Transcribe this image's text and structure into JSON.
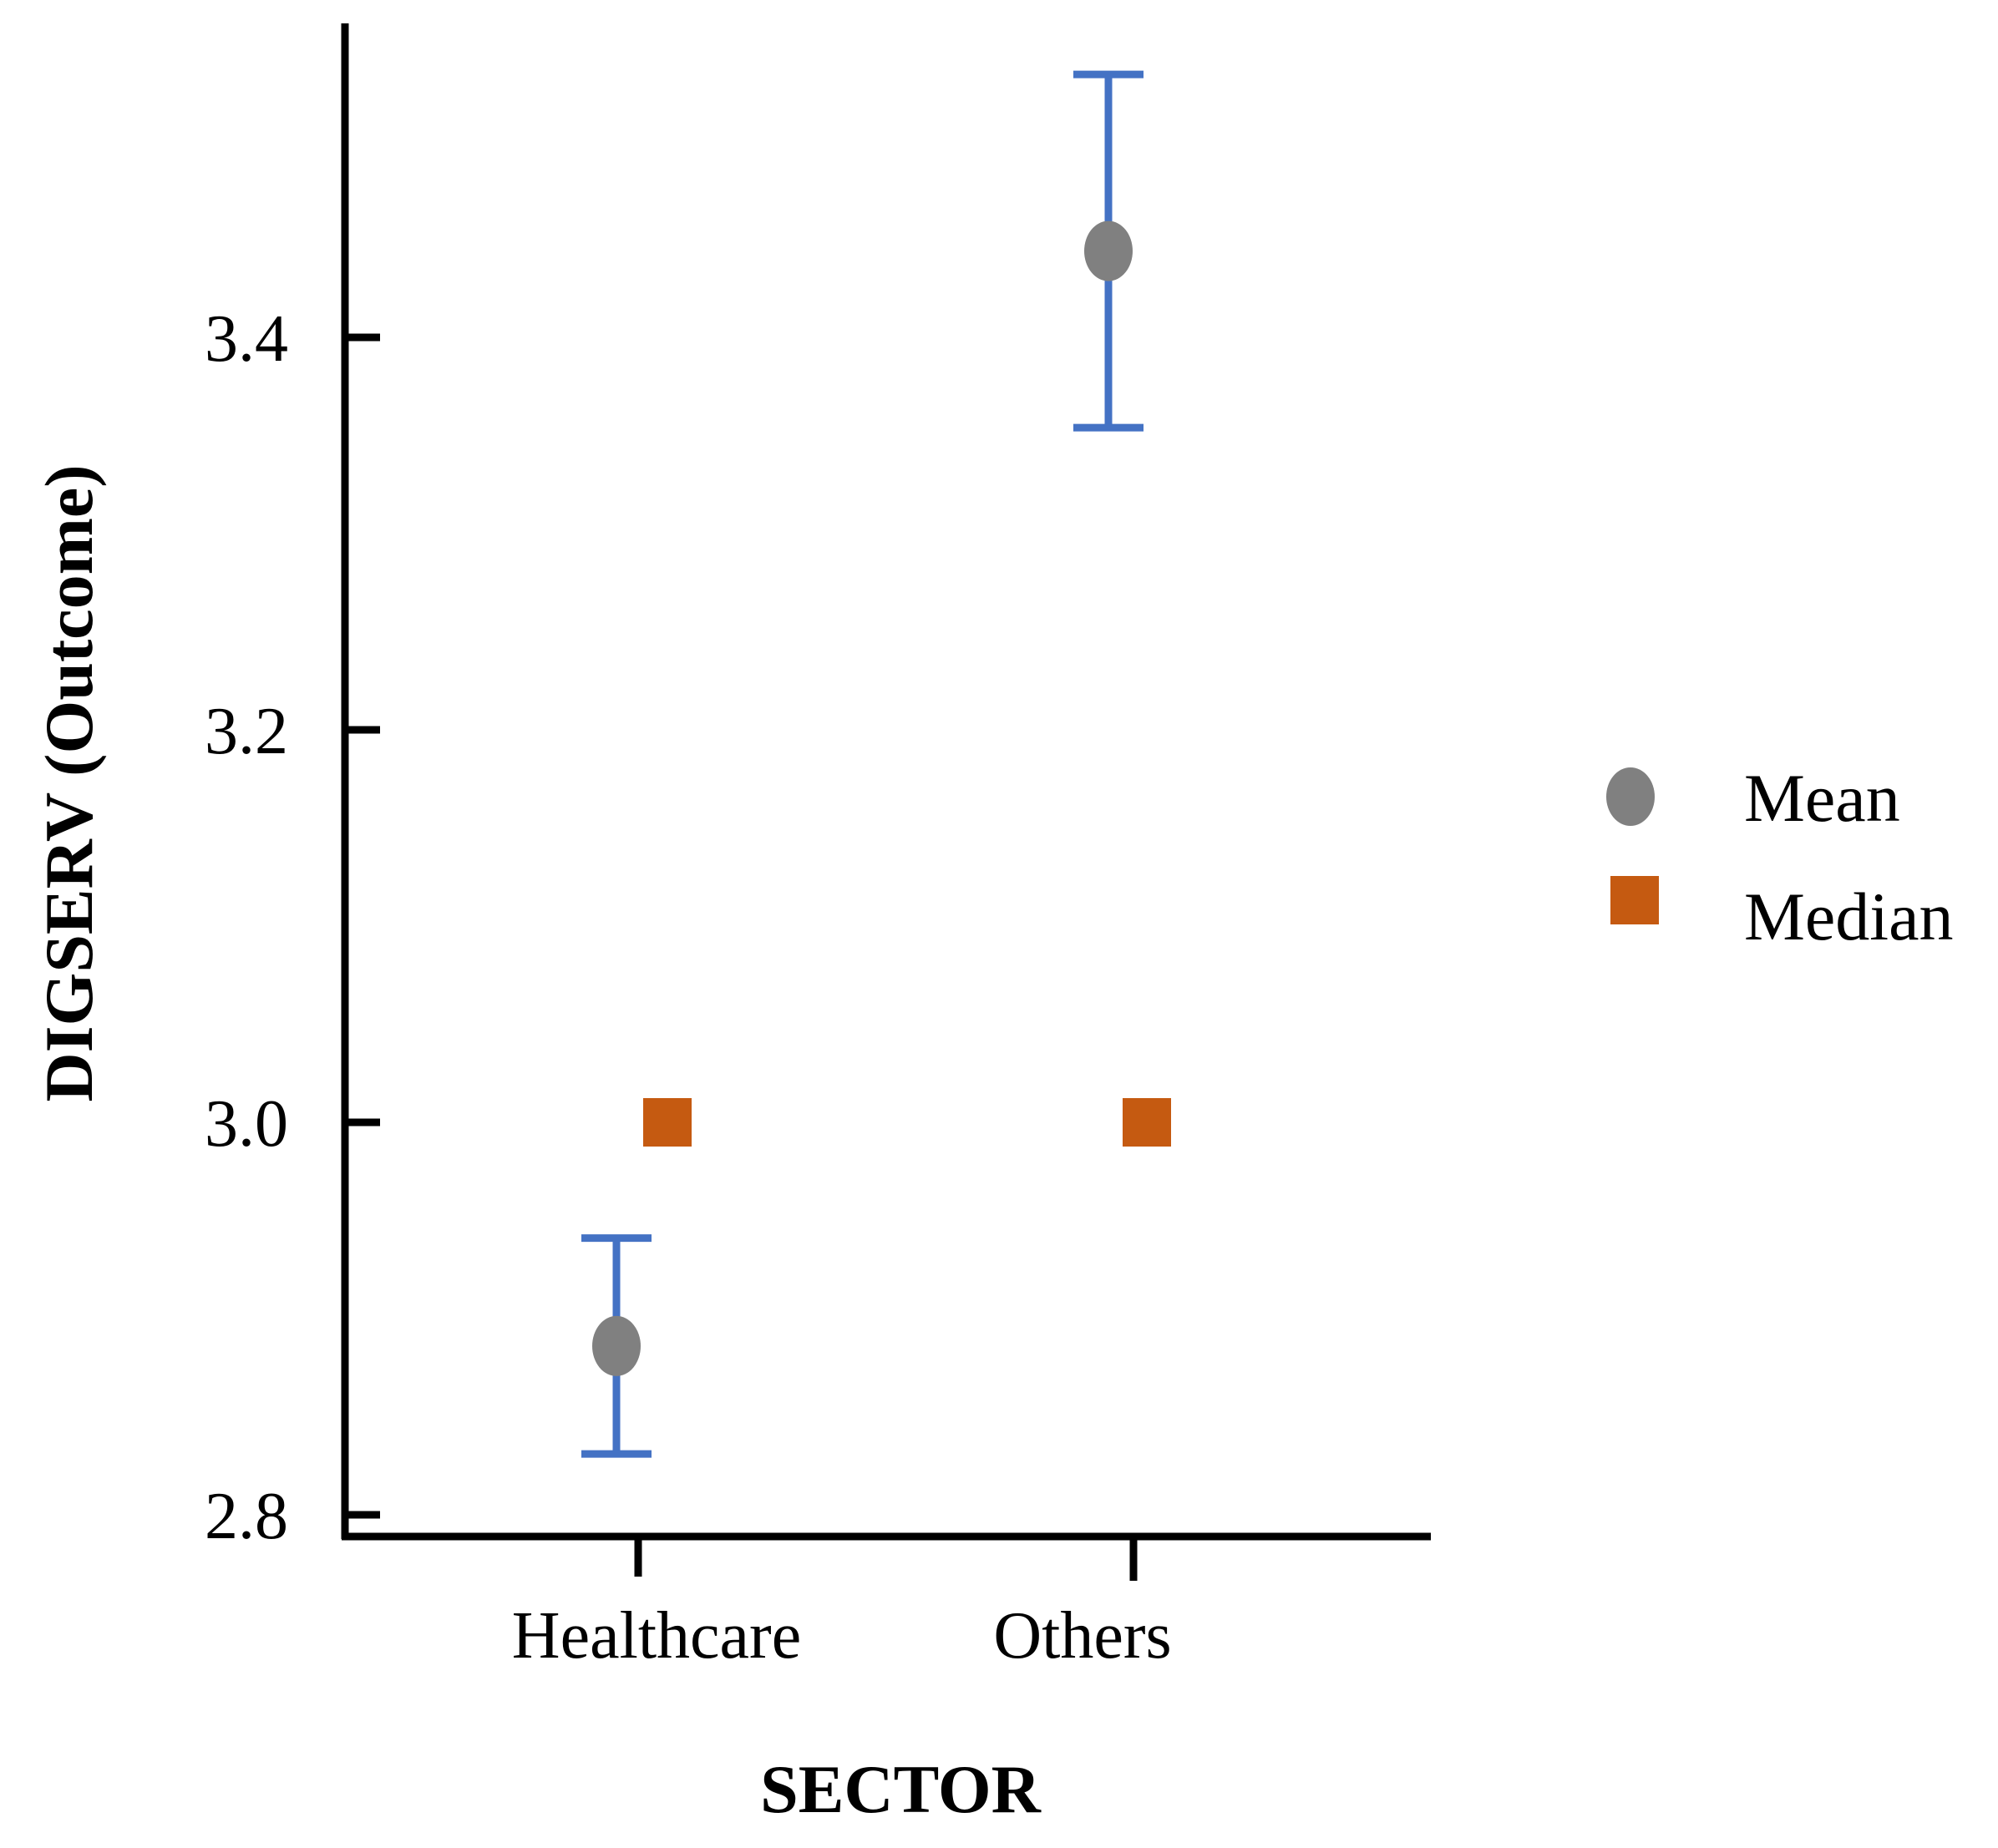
{
  "chart_data": {
    "type": "scatter",
    "title": "",
    "xlabel": "SECTOR",
    "ylabel": "DIGSERV (Outcome)",
    "categories": [
      "Healthcare",
      "Others"
    ],
    "ylim": [
      2.79,
      3.56
    ],
    "yticks": [
      2.8,
      3.0,
      3.2,
      3.4
    ],
    "ytick_labels": [
      "2.8",
      "3.0",
      "3.2",
      "3.4"
    ],
    "series": [
      {
        "name": "Mean",
        "marker": "circle",
        "color": "#808080",
        "values": [
          2.886,
          3.444
        ],
        "error_low": [
          2.831,
          3.354
        ],
        "error_high": [
          2.941,
          3.534
        ],
        "error_color": "#4472C4"
      },
      {
        "name": "Median",
        "marker": "square",
        "color": "#C55A11",
        "values": [
          3.0,
          3.0
        ]
      }
    ],
    "legend": {
      "position": "right",
      "entries": [
        "Mean",
        "Median"
      ]
    },
    "grid": false
  }
}
